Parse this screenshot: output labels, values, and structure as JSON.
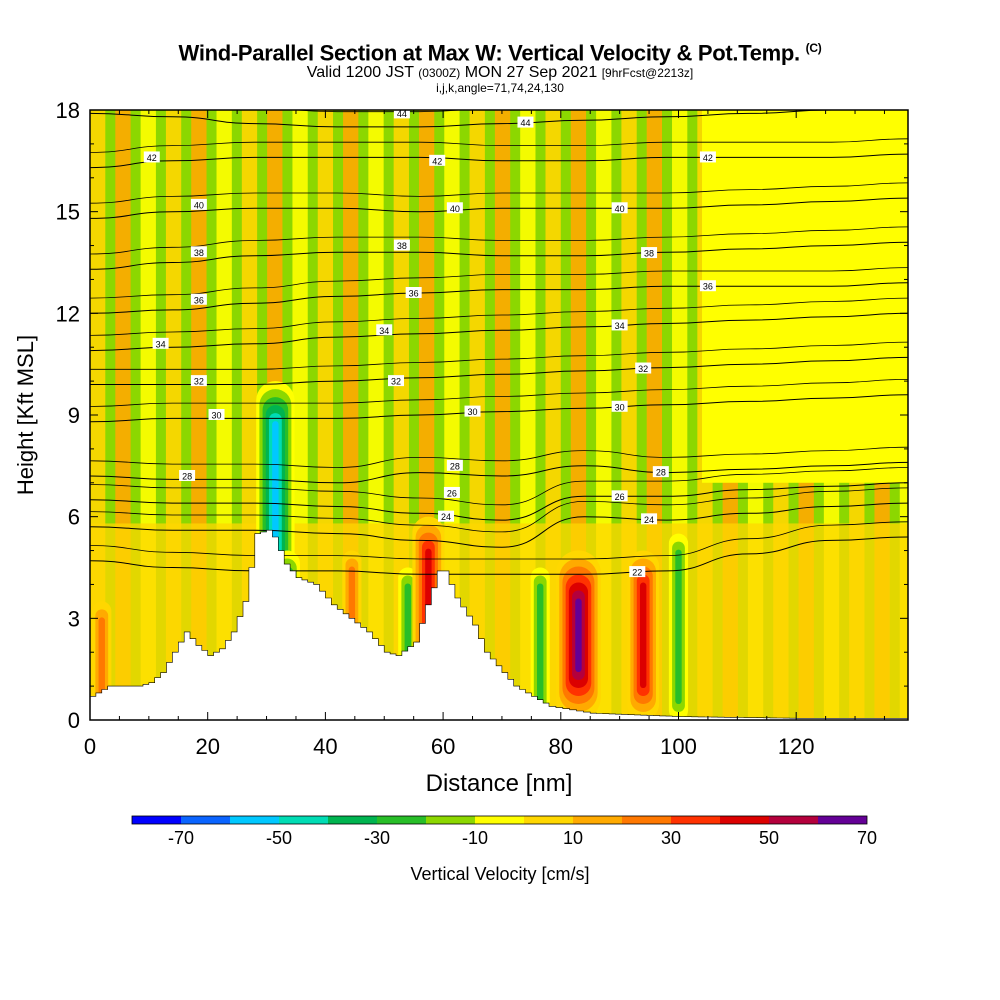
{
  "title": {
    "main": "Wind-Parallel Section at Max W: Vertical Velocity & Pot.Temp.",
    "copyright": "(C)",
    "valid_prefix": "Valid 1200 JST",
    "valid_utc": "(0300Z)",
    "valid_date": "MON 27 Sep 2021",
    "forecast": "[9hrFcst@2213z]",
    "params": "i,j,k,angle=71,74,24,130"
  },
  "chart_data": {
    "type": "heatmap",
    "xlabel": "Distance [nm]",
    "ylabel": "Height [Kft MSL]",
    "xlim": [
      0,
      139
    ],
    "ylim": [
      0,
      18
    ],
    "x_ticks": [
      0,
      20,
      40,
      60,
      80,
      100,
      120
    ],
    "y_ticks": [
      0,
      3,
      6,
      9,
      12,
      15,
      18
    ],
    "colorbar": {
      "label": "Vertical Velocity [cm/s]",
      "tick_labels": [
        -70,
        -50,
        -30,
        -10,
        10,
        30,
        50,
        70
      ],
      "bins": [
        -80,
        -70,
        -60,
        -50,
        -40,
        -30,
        -20,
        -10,
        0,
        10,
        20,
        30,
        40,
        50,
        60,
        70,
        80
      ],
      "colors": [
        "#0000ff",
        "#0a64ff",
        "#00c8ff",
        "#00dcb4",
        "#00b450",
        "#28be28",
        "#8cd700",
        "#ffff00",
        "#ffd700",
        "#ffaa00",
        "#ff7800",
        "#ff3200",
        "#dc0000",
        "#b4003c",
        "#640096"
      ]
    },
    "background_band_color": "#8cd700",
    "updraft_band_color": "#ffff00",
    "terrain": [
      [
        0,
        0.7
      ],
      [
        3,
        1.0
      ],
      [
        8,
        1.0
      ],
      [
        10,
        1.1
      ],
      [
        12,
        1.4
      ],
      [
        14,
        2.0
      ],
      [
        16,
        2.6
      ],
      [
        18,
        2.2
      ],
      [
        20,
        1.9
      ],
      [
        22,
        2.1
      ],
      [
        24,
        2.6
      ],
      [
        26,
        3.5
      ],
      [
        28,
        5.5
      ],
      [
        30,
        5.6
      ],
      [
        31,
        5.4
      ],
      [
        33,
        4.6
      ],
      [
        35,
        4.2
      ],
      [
        38,
        4.0
      ],
      [
        41,
        3.4
      ],
      [
        44,
        3.0
      ],
      [
        47,
        2.6
      ],
      [
        50,
        2.0
      ],
      [
        52,
        1.9
      ],
      [
        55,
        2.3
      ],
      [
        57,
        3.4
      ],
      [
        59,
        4.4
      ],
      [
        60,
        4.4
      ],
      [
        62,
        3.6
      ],
      [
        65,
        2.8
      ],
      [
        67,
        2.0
      ],
      [
        70,
        1.4
      ],
      [
        72,
        1.0
      ],
      [
        75,
        0.7
      ],
      [
        78,
        0.4
      ],
      [
        85,
        0.2
      ],
      [
        100,
        0.1
      ],
      [
        120,
        0.05
      ],
      [
        139,
        0.05
      ]
    ],
    "velocity_features": [
      {
        "x": 30.5,
        "y_top": 8.0,
        "w": 40,
        "kind": "updraft"
      },
      {
        "x": 31.5,
        "y_top": 10.0,
        "w": -55,
        "kind": "downdraft"
      },
      {
        "x": 33.5,
        "y_top": 5.0,
        "w": -35,
        "kind": "downdraft"
      },
      {
        "x": 44.5,
        "y_top": 5.0,
        "w": 30,
        "kind": "updraft"
      },
      {
        "x": 54.0,
        "y_top": 4.5,
        "w": -25,
        "kind": "downdraft"
      },
      {
        "x": 57.5,
        "y_top": 6.0,
        "w": 45,
        "kind": "updraft"
      },
      {
        "x": 76.5,
        "y_top": 4.5,
        "w": -30,
        "kind": "downdraft"
      },
      {
        "x": 83.0,
        "y_top": 5.0,
        "w": 65,
        "kind": "updraft"
      },
      {
        "x": 94.0,
        "y_top": 5.0,
        "w": 45,
        "kind": "updraft"
      },
      {
        "x": 100.0,
        "y_top": 5.5,
        "w": -25,
        "kind": "downdraft"
      },
      {
        "x": 2.0,
        "y_top": 3.5,
        "w": 30,
        "kind": "updraft"
      }
    ],
    "theta_contours": [
      {
        "label": "22",
        "y": [
          4.7,
          4.5,
          4.4,
          4.4,
          4.3,
          4.3,
          4.3,
          4.4,
          4.9,
          5.3,
          5.4
        ],
        "label_x": 93
      },
      {
        "label": "24",
        "y": [
          5.7,
          5.6,
          5.6,
          5.5,
          5.3,
          5.1,
          6.0,
          5.9,
          6.1,
          6.3,
          6.4
        ],
        "label_x": 95
      },
      {
        "label": "26",
        "y": [
          6.5,
          6.4,
          6.4,
          6.3,
          6.1,
          5.9,
          6.6,
          6.6,
          6.8,
          6.9,
          7.0
        ],
        "label_x": 90
      },
      {
        "label": "28",
        "y": [
          7.2,
          7.1,
          7.1,
          7.0,
          7.3,
          7.2,
          7.5,
          7.3,
          7.4,
          7.5,
          7.6
        ],
        "label_x": 97
      },
      {
        "label": "30",
        "y": [
          8.8,
          8.9,
          8.9,
          8.9,
          9.0,
          9.1,
          9.2,
          9.3,
          9.4,
          9.5,
          9.6
        ],
        "label_x": 90
      },
      {
        "label": "32",
        "y": [
          9.9,
          9.9,
          9.9,
          10.0,
          10.1,
          10.2,
          10.3,
          10.4,
          10.5,
          10.6,
          10.7
        ],
        "label_x": 94
      },
      {
        "label": "34",
        "y": [
          10.9,
          11.0,
          11.1,
          11.3,
          11.4,
          11.5,
          11.6,
          11.7,
          11.8,
          11.9,
          12.0
        ],
        "label_x": 90
      },
      {
        "label": "36",
        "y": [
          12.0,
          12.1,
          12.3,
          12.5,
          12.6,
          12.7,
          12.7,
          12.8,
          12.8,
          12.8,
          12.9
        ],
        "label_x": 105
      },
      {
        "label": "38",
        "y": [
          13.3,
          13.5,
          13.7,
          13.8,
          13.8,
          13.7,
          13.7,
          13.8,
          13.9,
          14.0,
          14.1
        ],
        "label_x": 95
      },
      {
        "label": "40",
        "y": [
          14.8,
          15.0,
          15.1,
          15.1,
          15.0,
          15.1,
          15.1,
          15.1,
          15.2,
          15.3,
          15.4
        ],
        "label_x": 90
      },
      {
        "label": "42",
        "y": [
          16.3,
          16.5,
          16.6,
          16.6,
          16.6,
          16.5,
          16.5,
          16.6,
          16.6,
          16.6,
          16.7
        ],
        "label_x": 105
      },
      {
        "label": "44",
        "y": [
          17.9,
          17.8,
          17.6,
          17.5,
          17.5,
          17.6,
          17.7,
          17.8,
          17.9,
          18.0,
          18.0
        ],
        "label_x": 74
      }
    ],
    "theta_x_nodes": [
      0,
      14,
      28,
      42,
      56,
      70,
      84,
      98,
      112,
      126,
      139
    ],
    "contour_labels_extra": [
      {
        "label": "42",
        "x": 10.5,
        "y": 16.6
      },
      {
        "label": "42",
        "x": 59,
        "y": 16.5
      },
      {
        "label": "40",
        "x": 18.5,
        "y": 15.2
      },
      {
        "label": "40",
        "x": 62,
        "y": 15.1
      },
      {
        "label": "38",
        "x": 18.5,
        "y": 13.8
      },
      {
        "label": "38",
        "x": 53,
        "y": 14.0
      },
      {
        "label": "36",
        "x": 18.5,
        "y": 12.4
      },
      {
        "label": "36",
        "x": 55,
        "y": 12.6
      },
      {
        "label": "34",
        "x": 12,
        "y": 11.1
      },
      {
        "label": "34",
        "x": 50,
        "y": 11.5
      },
      {
        "label": "32",
        "x": 18.5,
        "y": 10.0
      },
      {
        "label": "32",
        "x": 52,
        "y": 10.0
      },
      {
        "label": "30",
        "x": 21.5,
        "y": 9.0
      },
      {
        "label": "30",
        "x": 65,
        "y": 9.1
      },
      {
        "label": "28",
        "x": 16.5,
        "y": 7.2
      },
      {
        "label": "28",
        "x": 62,
        "y": 7.5
      },
      {
        "label": "26",
        "x": 61.5,
        "y": 6.7
      },
      {
        "label": "24",
        "x": 60.5,
        "y": 6.0
      },
      {
        "label": "44",
        "x": 53,
        "y": 17.9
      }
    ]
  }
}
